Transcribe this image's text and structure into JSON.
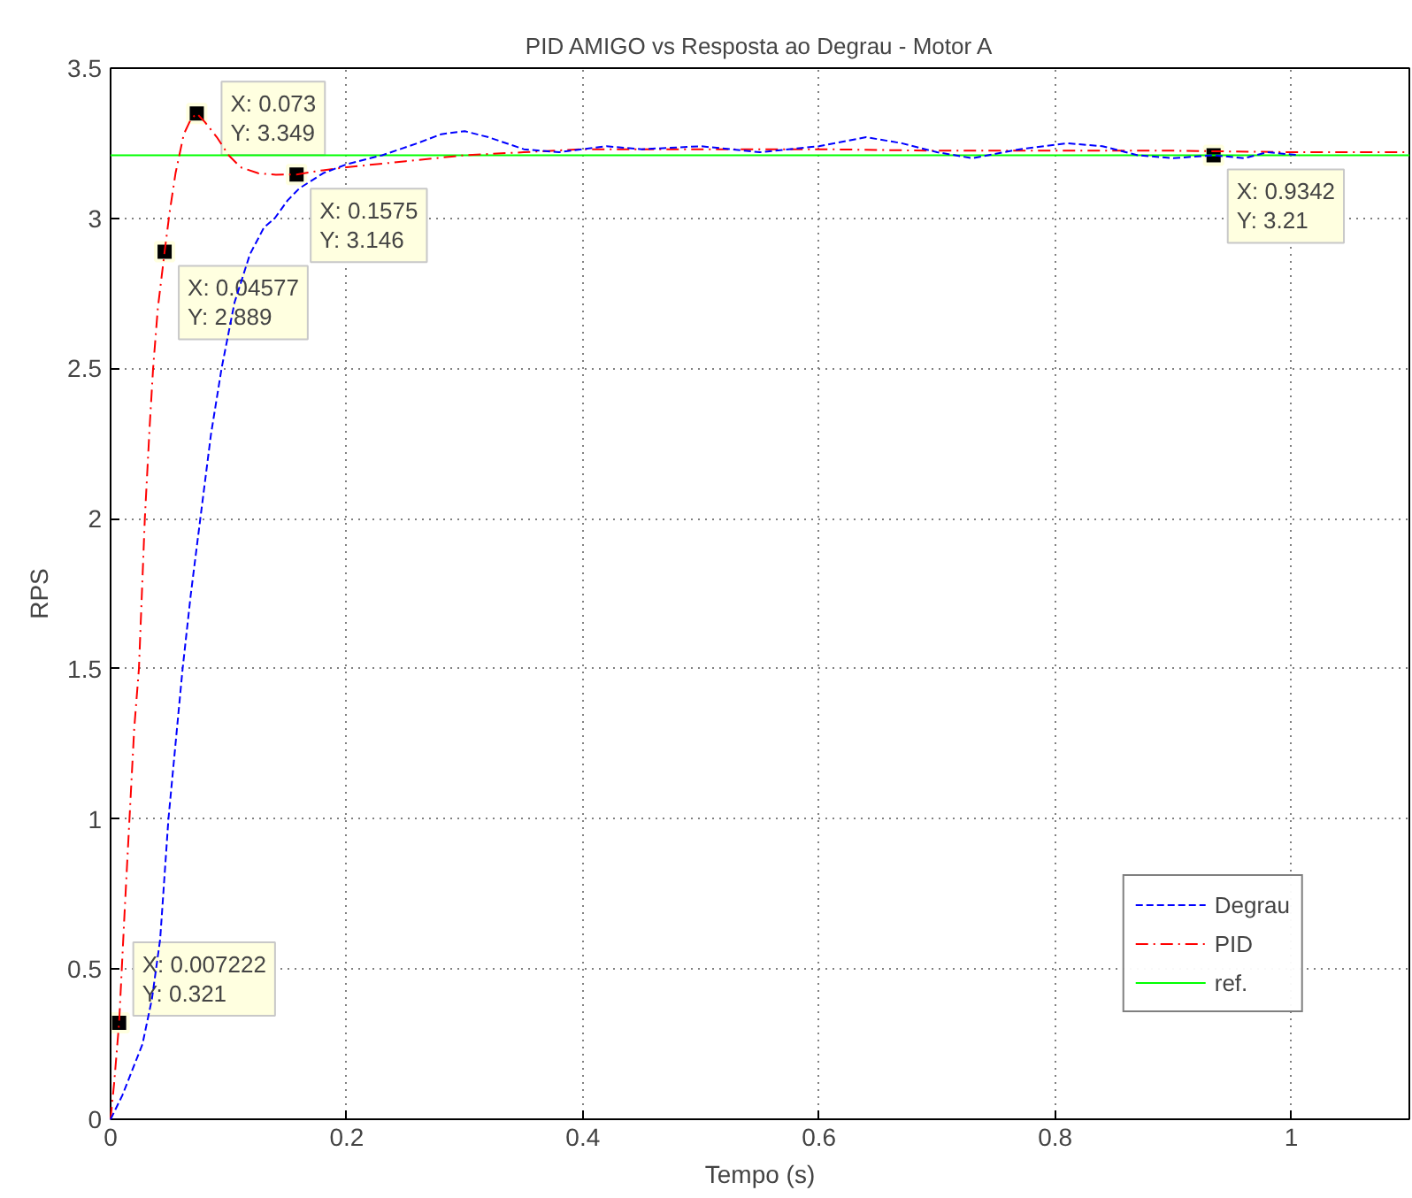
{
  "chart_data": {
    "type": "line",
    "title": "PID AMIGO vs Resposta ao Degrau - Motor A",
    "xlabel": "Tempo (s)",
    "ylabel": "RPS",
    "xlim": [
      0,
      1.1
    ],
    "ylim": [
      0,
      3.5
    ],
    "xticks": [
      0,
      0.2,
      0.4,
      0.6,
      0.8,
      1
    ],
    "yticks": [
      0,
      0.5,
      1,
      1.5,
      2,
      2.5,
      3,
      3.5
    ],
    "grid": true,
    "legend": "bottom right",
    "marker": "none",
    "series": [
      {
        "name": "Degrau",
        "color": "#0000ff",
        "line_style": "dashed",
        "x": [
          0,
          0.01,
          0.02,
          0.027,
          0.035,
          0.042,
          0.049,
          0.055,
          0.061,
          0.068,
          0.076,
          0.085,
          0.094,
          0.105,
          0.118,
          0.13,
          0.139,
          0.15,
          0.16,
          0.18,
          0.2,
          0.23,
          0.26,
          0.28,
          0.3,
          0.32,
          0.35,
          0.38,
          0.42,
          0.45,
          0.5,
          0.55,
          0.6,
          0.64,
          0.67,
          0.7,
          0.73,
          0.77,
          0.81,
          0.84,
          0.87,
          0.9,
          0.9342,
          0.96,
          0.98,
          1.007
        ],
        "values": [
          0,
          0.08,
          0.18,
          0.25,
          0.4,
          0.6,
          1.0,
          1.25,
          1.5,
          1.75,
          2.0,
          2.28,
          2.5,
          2.72,
          2.88,
          2.97,
          3.0,
          3.06,
          3.1,
          3.15,
          3.18,
          3.21,
          3.25,
          3.28,
          3.29,
          3.27,
          3.23,
          3.22,
          3.24,
          3.23,
          3.24,
          3.22,
          3.24,
          3.27,
          3.25,
          3.22,
          3.2,
          3.23,
          3.25,
          3.24,
          3.21,
          3.2,
          3.21,
          3.2,
          3.22,
          3.21
        ]
      },
      {
        "name": "PID",
        "color": "#ff0000",
        "line_style": "dashdot",
        "x": [
          0,
          0.003,
          0.007222,
          0.012,
          0.016,
          0.02,
          0.024,
          0.029,
          0.033,
          0.036,
          0.04,
          0.04577,
          0.05,
          0.055,
          0.062,
          0.068,
          0.073,
          0.08,
          0.09,
          0.1,
          0.11,
          0.125,
          0.14,
          0.1575,
          0.18,
          0.2,
          0.25,
          0.3,
          0.35,
          0.4,
          0.5,
          0.6,
          0.7,
          0.8,
          0.9,
          1.0,
          1.1
        ],
        "values": [
          0,
          0.12,
          0.321,
          0.7,
          1.0,
          1.3,
          1.5,
          2.0,
          2.3,
          2.5,
          2.7,
          2.889,
          3.02,
          3.15,
          3.28,
          3.33,
          3.349,
          3.32,
          3.27,
          3.21,
          3.17,
          3.15,
          3.145,
          3.146,
          3.16,
          3.17,
          3.19,
          3.21,
          3.22,
          3.23,
          3.23,
          3.23,
          3.225,
          3.225,
          3.225,
          3.22,
          3.22
        ]
      },
      {
        "name": "ref.",
        "color": "#00ff00",
        "line_style": "solid",
        "x": [
          0,
          1.1
        ],
        "values": [
          3.21,
          3.21
        ]
      }
    ],
    "annotations": [
      {
        "text": "X: 0.007222\nY: 0.321",
        "x": 0.007222,
        "y": 0.321
      },
      {
        "text": "X: 0.04577\nY: 2.889",
        "x": 0.04577,
        "y": 2.889
      },
      {
        "text": "X: 0.073\nY: 3.349",
        "x": 0.073,
        "y": 3.349
      },
      {
        "text": "X: 0.1575\nY: 3.146",
        "x": 0.1575,
        "y": 3.146
      },
      {
        "text": "X: 0.9342\nY: 3.21",
        "x": 0.9342,
        "y": 3.21
      }
    ]
  }
}
